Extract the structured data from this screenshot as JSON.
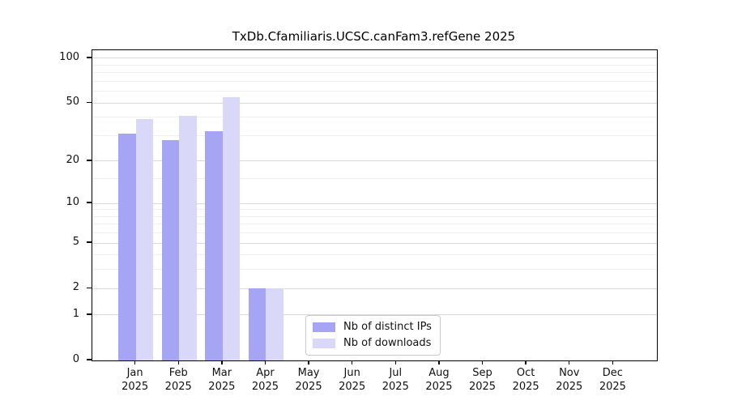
{
  "title": "TxDb.Cfamiliaris.UCSC.canFam3.refGene 2025",
  "chart_data": {
    "type": "bar",
    "title": "TxDb.Cfamiliaris.UCSC.canFam3.refGene 2025",
    "categories": [
      "Jan",
      "Feb",
      "Mar",
      "Apr",
      "May",
      "Jun",
      "Jul",
      "Aug",
      "Sep",
      "Oct",
      "Nov",
      "Dec"
    ],
    "year_label": "2025",
    "series": [
      {
        "name": "Nb of distinct IPs",
        "color": "#a6a5f3",
        "values": [
          31,
          28,
          32,
          2,
          0,
          0,
          0,
          0,
          0,
          0,
          0,
          0
        ]
      },
      {
        "name": "Nb of downloads",
        "color": "#d9d8f8",
        "values": [
          39,
          41,
          55,
          2,
          0,
          0,
          0,
          0,
          0,
          0,
          0,
          0
        ]
      }
    ],
    "xlabel": "",
    "ylabel": "",
    "yscale": "log10(value+1)",
    "yticks": [
      0,
      1,
      2,
      5,
      10,
      20,
      50,
      100
    ],
    "yticks_minor": [
      3,
      4,
      6,
      7,
      8,
      9,
      15,
      30,
      40,
      60,
      70,
      80,
      90
    ],
    "ylim": [
      0,
      113
    ],
    "grid": true,
    "legend_position": "inside-bottom-center",
    "colors": {
      "axis": "#000000",
      "grid_major": "#d9d9d9",
      "grid_minor": "#f0f0f0",
      "background": "#ffffff"
    }
  }
}
